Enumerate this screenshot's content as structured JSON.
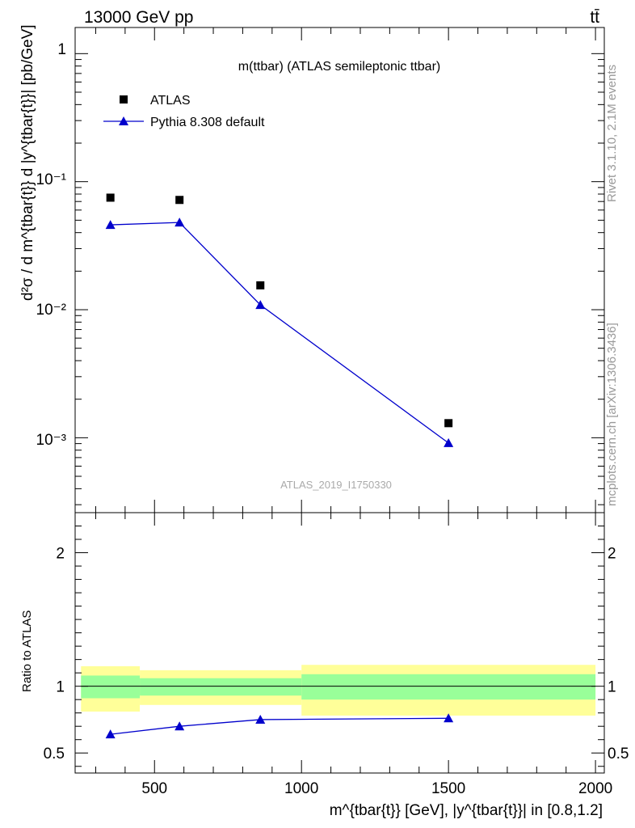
{
  "header": {
    "left": "13000 GeV pp",
    "right": "tt̄"
  },
  "side_labels": {
    "rivet": "Rivet 3.1.10,  2.1M events",
    "source": "mcplots.cern.ch [arXiv:1306.3436]"
  },
  "chart_data": [
    {
      "type": "scatter",
      "title": "m(ttbar) (ATLAS semileptonic ttbar)",
      "watermark": "ATLAS_2019_I1750330",
      "ylabel": "d²σ / d m^{tbar{t}} d |y^{tbar{t}}| [pb/GeV]",
      "yscale": "log",
      "xlim": [
        230,
        2030
      ],
      "ylim": [
        0.00026,
        1.6
      ],
      "ytick_labels": [
        "1",
        "10⁻¹",
        "10⁻²",
        "10⁻³"
      ],
      "legend_position": "top-left",
      "series": [
        {
          "name": "ATLAS",
          "marker": "square",
          "color": "#000000",
          "x": [
            350,
            585,
            860,
            1500
          ],
          "y": [
            0.075,
            0.072,
            0.0155,
            0.0013
          ]
        },
        {
          "name": "Pythia 8.308 default",
          "marker": "triangle",
          "color": "#0000cc",
          "x": [
            350,
            585,
            860,
            1500
          ],
          "y": [
            0.046,
            0.048,
            0.0109,
            0.00091
          ]
        }
      ]
    },
    {
      "type": "line",
      "ylabel": "Ratio to ATLAS",
      "xlabel": "m^{tbar{t}} [GeV], |y^{tbar{t}}| in [0.8,1.2]",
      "xlim": [
        230,
        2030
      ],
      "ylim": [
        0.35,
        2.3
      ],
      "xticks": [
        500,
        1000,
        1500,
        2000
      ],
      "yticks": [
        0.5,
        1,
        2
      ],
      "reference": 1,
      "bands": [
        {
          "xlo": 250,
          "xhi": 450,
          "inner": [
            0.91,
            1.08
          ],
          "outer": [
            0.81,
            1.15
          ]
        },
        {
          "xlo": 450,
          "xhi": 1000,
          "inner": [
            0.93,
            1.06
          ],
          "outer": [
            0.86,
            1.12
          ]
        },
        {
          "xlo": 1000,
          "xhi": 2000,
          "inner": [
            0.9,
            1.09
          ],
          "outer": [
            0.78,
            1.16
          ]
        }
      ],
      "band_colors": {
        "inner": "#99ff99",
        "outer": "#ffff99"
      },
      "series": [
        {
          "name": "Pythia 8.308 default",
          "color": "#0000cc",
          "x": [
            350,
            585,
            860,
            1500
          ],
          "y": [
            0.64,
            0.7,
            0.75,
            0.76
          ]
        }
      ]
    }
  ]
}
